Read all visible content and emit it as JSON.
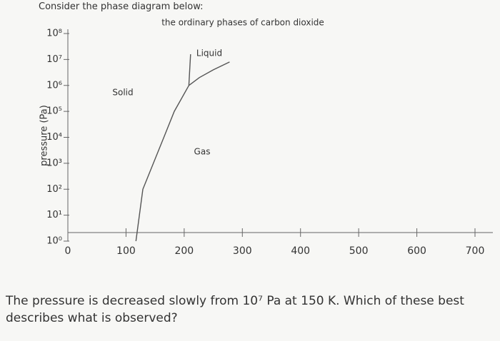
{
  "heading": "Consider the phase diagram below:",
  "chart_data": {
    "type": "line",
    "title": "the ordinary phases of carbon dioxide",
    "y_label": "pressure (Pa)",
    "log_y": true,
    "xlim": [
      0,
      700
    ],
    "xticks": [
      0,
      100,
      200,
      300,
      400,
      500,
      600,
      700
    ],
    "ylim": [
      1,
      100000000
    ],
    "yticks": [
      {
        "value": 1,
        "label": "10⁰"
      },
      {
        "value": 10,
        "label": "10¹"
      },
      {
        "value": 100,
        "label": "10²"
      },
      {
        "value": 1000,
        "label": "10³"
      },
      {
        "value": 10000,
        "label": "10⁴"
      },
      {
        "value": 100000,
        "label": "10⁵"
      },
      {
        "value": 1000000,
        "label": "10⁶"
      },
      {
        "value": 10000000,
        "label": "10⁷"
      },
      {
        "value": 100000000,
        "label": "10⁸"
      }
    ],
    "series": [
      {
        "color": "#555555",
        "x": [
          117,
          129,
          147,
          165,
          183,
          208
        ],
        "values": [
          1,
          100,
          1000,
          10000,
          100000,
          1000000
        ]
      },
      {
        "color": "#555555",
        "x": [
          208,
          211
        ],
        "values": [
          1000000,
          16000000
        ]
      },
      {
        "color": "#555555",
        "x": [
          208,
          226,
          250,
          278
        ],
        "values": [
          1000000,
          2000000,
          4000000,
          8000000
        ]
      }
    ],
    "annotations": [
      "Solid",
      "Liquid",
      "Gas"
    ]
  },
  "question": "The pressure is decreased slowly from 10⁷ Pa at 150 K. Which of these best describes what is observed?"
}
